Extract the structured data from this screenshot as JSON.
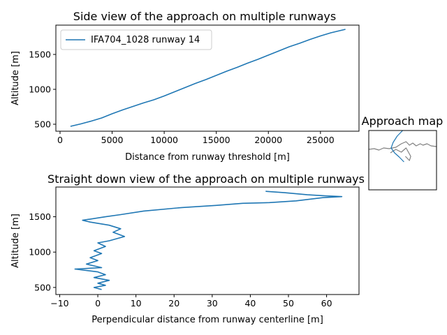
{
  "chart_data": [
    {
      "type": "line",
      "title": "Side view of the approach on multiple runways",
      "xlabel": "Distance from runway threshold [m]",
      "ylabel": "Altitude [m]",
      "xlim": [
        -400,
        28700
      ],
      "ylim": [
        400,
        1920
      ],
      "xticks": [
        0,
        5000,
        10000,
        15000,
        20000,
        25000
      ],
      "yticks": [
        500,
        1000,
        1500
      ],
      "grid": false,
      "legend": "top-left",
      "series": [
        {
          "name": "IFA704_1028 runway 14",
          "color": "#1f77b4",
          "x": [
            1000,
            2000,
            3000,
            4000,
            5000,
            6000,
            7000,
            8000,
            9000,
            10000,
            11000,
            12000,
            13000,
            14000,
            15000,
            16000,
            17000,
            18000,
            19000,
            20000,
            21000,
            22000,
            23000,
            24000,
            25000,
            26000,
            27400
          ],
          "y": [
            470,
            505,
            545,
            590,
            650,
            705,
            755,
            805,
            850,
            905,
            965,
            1025,
            1085,
            1140,
            1200,
            1260,
            1315,
            1375,
            1430,
            1490,
            1550,
            1610,
            1660,
            1715,
            1765,
            1810,
            1860
          ]
        }
      ]
    },
    {
      "type": "line",
      "title": "Straight down view of the approach on multiple runways",
      "xlabel": "Perpendicular distance from runway centerline [m]",
      "ylabel": "Altitude [m]",
      "xlim": [
        -11,
        68.5
      ],
      "ylim": [
        400,
        1920
      ],
      "xticks": [
        -10,
        0,
        10,
        20,
        30,
        40,
        50,
        60
      ],
      "yticks": [
        500,
        1000,
        1500
      ],
      "grid": false,
      "series": [
        {
          "color": "#1f77b4",
          "x": [
            44,
            49,
            55,
            60,
            64,
            59,
            52,
            45,
            38,
            31,
            22,
            12,
            6,
            2,
            -4,
            -2,
            3,
            6,
            4,
            7,
            3,
            0,
            2,
            -1,
            1,
            -2,
            0,
            -3,
            1,
            -6,
            0,
            2,
            -1,
            3,
            0,
            2,
            -1,
            1
          ],
          "y": [
            1860,
            1840,
            1810,
            1795,
            1785,
            1770,
            1725,
            1700,
            1690,
            1660,
            1630,
            1580,
            1530,
            1500,
            1450,
            1425,
            1380,
            1330,
            1280,
            1220,
            1160,
            1130,
            1080,
            1020,
            980,
            920,
            880,
            830,
            780,
            760,
            720,
            680,
            640,
            600,
            560,
            530,
            500,
            470
          ]
        }
      ]
    },
    {
      "type": "line",
      "title": "Approach map",
      "xlim": [
        0,
        100
      ],
      "ylim": [
        0,
        85
      ],
      "series": [
        {
          "color": "#808080",
          "x": [
            0,
            8,
            15,
            22,
            30,
            40,
            48,
            55,
            60,
            65,
            70,
            76,
            80,
            86,
            92,
            100
          ],
          "y": [
            58,
            59,
            57,
            60,
            59,
            61,
            66,
            69,
            64,
            67,
            63,
            66,
            64,
            66,
            63,
            62
          ]
        },
        {
          "color": "#808080",
          "x": [
            32,
            40,
            48,
            55,
            62,
            60,
            54
          ],
          "y": [
            53,
            58,
            54,
            60,
            48,
            42,
            48
          ]
        },
        {
          "color": "#1f77b4",
          "x": [
            50,
            42,
            36,
            33,
            38,
            45,
            52
          ],
          "y": [
            85,
            77,
            68,
            60,
            53,
            47,
            40
          ]
        }
      ]
    }
  ]
}
